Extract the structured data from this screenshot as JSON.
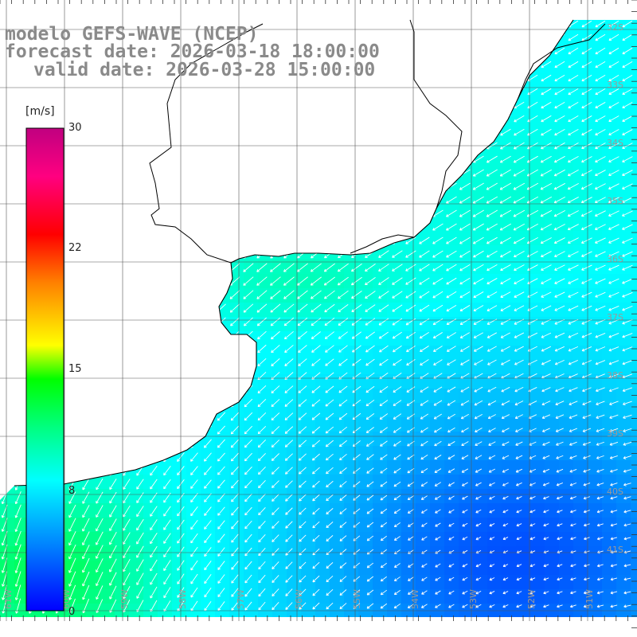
{
  "titles": {
    "model": "modelo GEFS-WAVE (NCEP)",
    "forecast": "forecast date: 2026-03-18 18:00:00",
    "valid": "valid date: 2026-03-28 15:00:00"
  },
  "colorbar": {
    "unit": "[m/s]",
    "tick_labels": [
      "30",
      "22",
      "15",
      "8",
      "0"
    ],
    "tick_values": [
      30,
      22,
      15,
      8,
      0
    ],
    "range": [
      0,
      30
    ],
    "colors": [
      "#0000ff",
      "#00b4ff",
      "#00ffff",
      "#00ff00",
      "#ffff00",
      "#ff8000",
      "#ff0000",
      "#ff0080",
      "#c00080"
    ]
  },
  "map": {
    "grid": true,
    "land_color": "#ffffff",
    "coastline_color": "#000000",
    "lat_labels": [
      "32S",
      "33S",
      "34S",
      "35S",
      "36S",
      "37S",
      "38S",
      "39S",
      "40S",
      "41S"
    ],
    "lon_labels": [
      "61W",
      "60W",
      "59W",
      "58W",
      "57W",
      "56W",
      "55W",
      "54W",
      "53W",
      "52W",
      "51W"
    ]
  }
}
